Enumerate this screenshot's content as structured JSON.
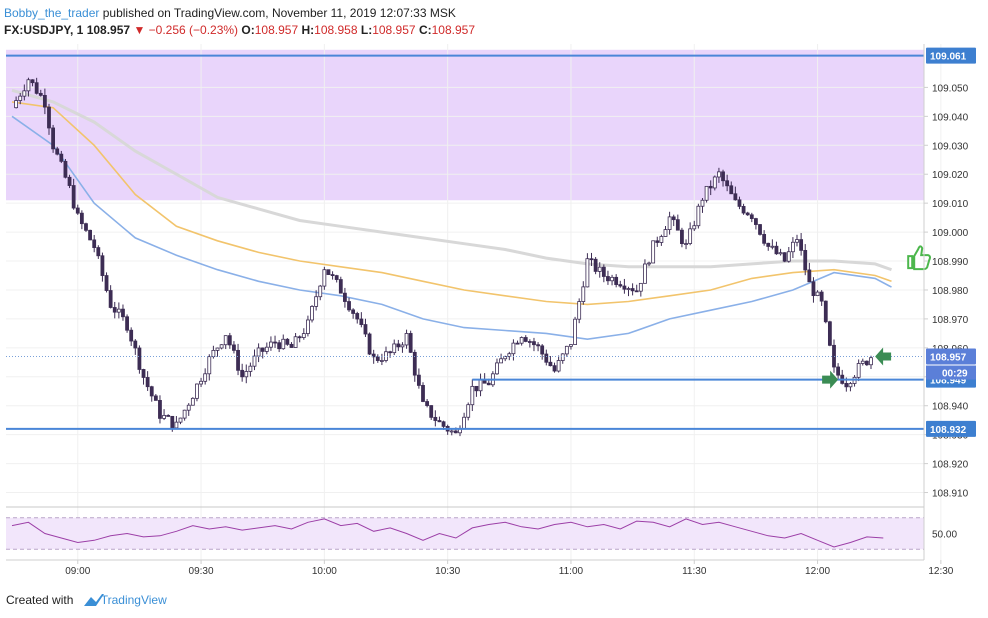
{
  "header": {
    "author": "Bobby_the_trader",
    "published": " published on TradingView.com, November 11, 2019 12:07:33 MSK"
  },
  "ohlc": {
    "symbol": "FX:USDJPY, 1",
    "last": "108.957",
    "change": "▼ −0.256 (−0.23%)",
    "o_label": "O:",
    "o": "108.957",
    "h_label": "H:",
    "h": "108.958",
    "l_label": "L:",
    "l": "108.957",
    "c_label": "C:",
    "c": "108.957"
  },
  "footer": {
    "created_with": "Created with",
    "brand": "TradingView"
  },
  "colors": {
    "zone": "#e9d5fb",
    "hline": "#4a86d8",
    "candle": "#3d2d54",
    "sma_blue": "#8ab0e8",
    "sma_orange": "#f2c46c",
    "sma_gray": "#d8d8d8",
    "rsi": "#9c3fa7",
    "rsi_band": "#f2e6fb",
    "arrow": "#3b8c54",
    "thumb": "#4cb74c",
    "tag_blue": "#3d7fd0",
    "tag_current": "#5b7fd8"
  },
  "chart_data": {
    "type": "candlestick",
    "y_range": [
      108.905,
      109.065
    ],
    "y_ticks": [
      "109.050",
      "109.040",
      "109.030",
      "109.020",
      "109.010",
      "109.000",
      "108.990",
      "108.980",
      "108.970",
      "108.960",
      "108.950",
      "108.940",
      "108.930",
      "108.920",
      "108.910"
    ],
    "x_ticks": [
      "09:00",
      "09:30",
      "10:00",
      "10:30",
      "11:00",
      "11:30",
      "12:00",
      "12:30"
    ],
    "zone": {
      "top": 109.063,
      "bottom": 109.011
    },
    "hlines": [
      {
        "price": 109.061,
        "label": "109.061"
      },
      {
        "price": 108.932,
        "label": "108.932"
      }
    ],
    "segment": {
      "price": 108.949,
      "label": "108.949",
      "start_time": "10:36"
    },
    "current_price": {
      "price": 108.957,
      "label": "108.957",
      "countdown": "00:29"
    },
    "close_path": [
      [
        0,
        109.043
      ],
      [
        4,
        109.053
      ],
      [
        8,
        109.045
      ],
      [
        10,
        109.03
      ],
      [
        14,
        109.015
      ],
      [
        16,
        109.005
      ],
      [
        20,
        108.995
      ],
      [
        24,
        108.975
      ],
      [
        28,
        108.968
      ],
      [
        32,
        108.95
      ],
      [
        36,
        108.937
      ],
      [
        40,
        108.933
      ],
      [
        44,
        108.944
      ],
      [
        48,
        108.956
      ],
      [
        52,
        108.965
      ],
      [
        56,
        108.95
      ],
      [
        60,
        108.958
      ],
      [
        64,
        108.962
      ],
      [
        68,
        108.96
      ],
      [
        72,
        108.968
      ],
      [
        76,
        108.988
      ],
      [
        80,
        108.98
      ],
      [
        84,
        108.97
      ],
      [
        88,
        108.956
      ],
      [
        92,
        108.958
      ],
      [
        96,
        108.964
      ],
      [
        100,
        108.94
      ],
      [
        104,
        108.934
      ],
      [
        108,
        108.93
      ],
      [
        112,
        108.946
      ],
      [
        116,
        108.948
      ],
      [
        120,
        108.958
      ],
      [
        124,
        108.965
      ],
      [
        128,
        108.96
      ],
      [
        132,
        108.952
      ],
      [
        136,
        108.962
      ],
      [
        140,
        108.99
      ],
      [
        144,
        108.985
      ],
      [
        148,
        108.983
      ],
      [
        152,
        108.98
      ],
      [
        156,
        108.995
      ],
      [
        160,
        109.005
      ],
      [
        164,
        108.995
      ],
      [
        168,
        109.012
      ],
      [
        172,
        109.02
      ],
      [
        176,
        109.01
      ],
      [
        180,
        109.006
      ],
      [
        184,
        108.995
      ],
      [
        188,
        108.99
      ],
      [
        191,
        108.998
      ],
      [
        194,
        108.982
      ],
      [
        197,
        108.975
      ],
      [
        200,
        108.952
      ],
      [
        203,
        108.948
      ],
      [
        206,
        108.953
      ],
      [
        209,
        108.957
      ]
    ],
    "sma_blue": [
      [
        0,
        109.04
      ],
      [
        10,
        109.03
      ],
      [
        20,
        109.01
      ],
      [
        30,
        108.998
      ],
      [
        40,
        108.992
      ],
      [
        50,
        108.987
      ],
      [
        60,
        108.983
      ],
      [
        70,
        108.98
      ],
      [
        80,
        108.978
      ],
      [
        90,
        108.975
      ],
      [
        100,
        108.97
      ],
      [
        110,
        108.967
      ],
      [
        120,
        108.966
      ],
      [
        130,
        108.965
      ],
      [
        140,
        108.963
      ],
      [
        150,
        108.965
      ],
      [
        160,
        108.97
      ],
      [
        170,
        108.973
      ],
      [
        180,
        108.976
      ],
      [
        190,
        108.98
      ],
      [
        200,
        108.986
      ],
      [
        210,
        108.984
      ],
      [
        214,
        108.981
      ]
    ],
    "sma_orange": [
      [
        0,
        109.045
      ],
      [
        10,
        109.043
      ],
      [
        20,
        109.03
      ],
      [
        30,
        109.013
      ],
      [
        40,
        109.002
      ],
      [
        50,
        108.997
      ],
      [
        60,
        108.993
      ],
      [
        70,
        108.99
      ],
      [
        80,
        108.988
      ],
      [
        90,
        108.986
      ],
      [
        100,
        108.983
      ],
      [
        110,
        108.98
      ],
      [
        120,
        108.978
      ],
      [
        130,
        108.976
      ],
      [
        140,
        108.975
      ],
      [
        150,
        108.976
      ],
      [
        160,
        108.978
      ],
      [
        170,
        108.98
      ],
      [
        180,
        108.984
      ],
      [
        190,
        108.986
      ],
      [
        200,
        108.987
      ],
      [
        210,
        108.985
      ],
      [
        214,
        108.983
      ]
    ],
    "sma_gray": [
      [
        0,
        109.049
      ],
      [
        10,
        109.045
      ],
      [
        20,
        109.038
      ],
      [
        30,
        109.028
      ],
      [
        40,
        109.02
      ],
      [
        50,
        109.012
      ],
      [
        60,
        109.008
      ],
      [
        70,
        109.004
      ],
      [
        80,
        109.002
      ],
      [
        90,
        109.0
      ],
      [
        100,
        108.998
      ],
      [
        110,
        108.996
      ],
      [
        120,
        108.994
      ],
      [
        130,
        108.991
      ],
      [
        140,
        108.989
      ],
      [
        150,
        108.988
      ],
      [
        160,
        108.988
      ],
      [
        170,
        108.988
      ],
      [
        180,
        108.989
      ],
      [
        190,
        108.99
      ],
      [
        200,
        108.99
      ],
      [
        210,
        108.989
      ],
      [
        214,
        108.987
      ]
    ],
    "rsi": {
      "label": "50.00",
      "y_range": [
        30,
        70
      ],
      "upper": 64,
      "lower": 36,
      "path": [
        [
          0,
          57
        ],
        [
          4,
          60
        ],
        [
          8,
          50
        ],
        [
          12,
          46
        ],
        [
          16,
          42
        ],
        [
          20,
          44
        ],
        [
          24,
          48
        ],
        [
          28,
          50
        ],
        [
          32,
          47
        ],
        [
          36,
          48
        ],
        [
          40,
          52
        ],
        [
          44,
          57
        ],
        [
          48,
          54
        ],
        [
          52,
          56
        ],
        [
          56,
          53
        ],
        [
          60,
          55
        ],
        [
          64,
          57
        ],
        [
          68,
          54
        ],
        [
          72,
          60
        ],
        [
          76,
          63
        ],
        [
          80,
          57
        ],
        [
          84,
          59
        ],
        [
          88,
          52
        ],
        [
          92,
          55
        ],
        [
          96,
          50
        ],
        [
          100,
          44
        ],
        [
          104,
          50
        ],
        [
          108,
          46
        ],
        [
          112,
          55
        ],
        [
          116,
          58
        ],
        [
          120,
          60
        ],
        [
          124,
          56
        ],
        [
          128,
          54
        ],
        [
          132,
          58
        ],
        [
          136,
          60
        ],
        [
          140,
          56
        ],
        [
          144,
          58
        ],
        [
          148,
          54
        ],
        [
          152,
          61
        ],
        [
          156,
          60
        ],
        [
          160,
          56
        ],
        [
          164,
          63
        ],
        [
          168,
          58
        ],
        [
          172,
          60
        ],
        [
          176,
          56
        ],
        [
          180,
          52
        ],
        [
          184,
          48
        ],
        [
          188,
          46
        ],
        [
          192,
          50
        ],
        [
          196,
          44
        ],
        [
          200,
          38
        ],
        [
          204,
          42
        ],
        [
          208,
          47
        ],
        [
          212,
          46
        ]
      ]
    },
    "annotations": [
      {
        "type": "arrow-right",
        "price": 108.949,
        "minute": 201
      },
      {
        "type": "arrow-left",
        "price": 108.957,
        "minute": 210
      },
      {
        "type": "thumbs-up",
        "price": 108.991,
        "minute": 220
      }
    ]
  }
}
